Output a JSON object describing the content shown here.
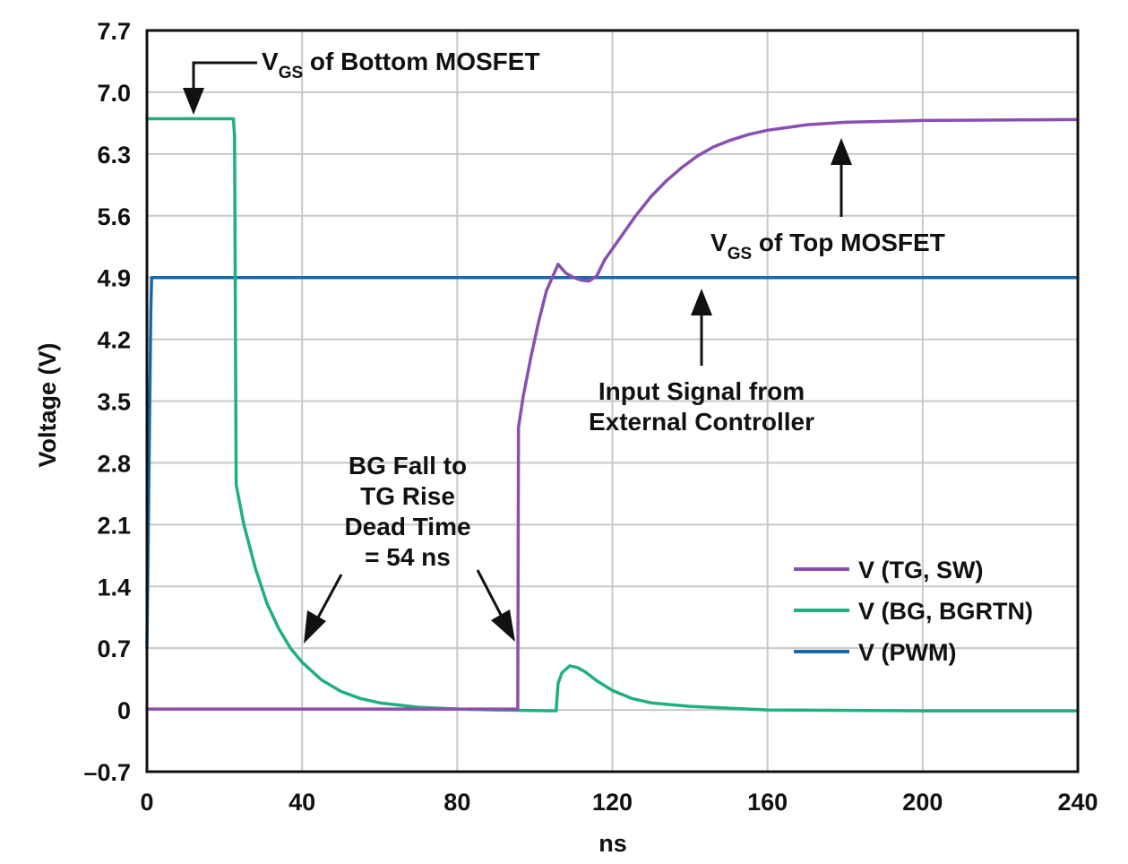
{
  "chart_data": {
    "type": "line",
    "title": "",
    "xlabel": "ns",
    "ylabel": "Voltage (V)",
    "xlim": [
      0,
      240
    ],
    "ylim": [
      -0.7,
      7.7
    ],
    "grid": true,
    "legend_placement": "bottom-right",
    "x_ticks": [
      "0",
      "40",
      "80",
      "120",
      "160",
      "200",
      "240"
    ],
    "x_tick_values": [
      0,
      40,
      80,
      120,
      160,
      200,
      240
    ],
    "y_ticks": [
      "7.7",
      "7.0",
      "6.3",
      "5.6",
      "4.9",
      "4.2",
      "3.5",
      "2.8",
      "2.1",
      "1.4",
      "0.7",
      "0",
      "–0.7"
    ],
    "y_tick_values": [
      7.7,
      7.0,
      6.3,
      5.6,
      4.9,
      4.2,
      3.5,
      2.8,
      2.1,
      1.4,
      0.7,
      0,
      -0.7
    ],
    "series": [
      {
        "name": "V (TG, SW)",
        "color": "#8a4fb0",
        "points": [
          [
            0,
            0.01
          ],
          [
            95.6,
            0.01
          ],
          [
            95.8,
            3.2
          ],
          [
            97,
            3.55
          ],
          [
            99,
            4.0
          ],
          [
            101,
            4.4
          ],
          [
            103,
            4.75
          ],
          [
            105,
            4.95
          ],
          [
            106,
            5.05
          ],
          [
            107,
            5.0
          ],
          [
            108,
            4.95
          ],
          [
            110,
            4.9
          ],
          [
            112,
            4.87
          ],
          [
            114,
            4.86
          ],
          [
            116,
            4.92
          ],
          [
            118,
            5.1
          ],
          [
            122,
            5.35
          ],
          [
            126,
            5.6
          ],
          [
            130,
            5.82
          ],
          [
            134,
            6.0
          ],
          [
            138,
            6.15
          ],
          [
            142,
            6.28
          ],
          [
            146,
            6.38
          ],
          [
            150,
            6.45
          ],
          [
            155,
            6.52
          ],
          [
            160,
            6.57
          ],
          [
            170,
            6.63
          ],
          [
            180,
            6.66
          ],
          [
            200,
            6.68
          ],
          [
            240,
            6.69
          ]
        ]
      },
      {
        "name": "V (BG, BGRTN)",
        "color": "#1fb07e",
        "points": [
          [
            0,
            6.7
          ],
          [
            22.3,
            6.7
          ],
          [
            22.6,
            6.5
          ],
          [
            23,
            2.55
          ],
          [
            25,
            2.1
          ],
          [
            28,
            1.6
          ],
          [
            31,
            1.2
          ],
          [
            34,
            0.92
          ],
          [
            37,
            0.7
          ],
          [
            40,
            0.54
          ],
          [
            45,
            0.34
          ],
          [
            50,
            0.21
          ],
          [
            55,
            0.13
          ],
          [
            60,
            0.08
          ],
          [
            70,
            0.03
          ],
          [
            80,
            0.01
          ],
          [
            90,
            0.0
          ],
          [
            105.5,
            -0.01
          ],
          [
            106,
            0.3
          ],
          [
            107,
            0.42
          ],
          [
            109,
            0.5
          ],
          [
            111,
            0.48
          ],
          [
            113,
            0.43
          ],
          [
            116,
            0.33
          ],
          [
            120,
            0.22
          ],
          [
            125,
            0.13
          ],
          [
            130,
            0.08
          ],
          [
            140,
            0.04
          ],
          [
            160,
            0.0
          ],
          [
            200,
            -0.01
          ],
          [
            240,
            -0.01
          ]
        ]
      },
      {
        "name": "V (PWM)",
        "color": "#1769a8",
        "points": [
          [
            0,
            0.7
          ],
          [
            1,
            4.5
          ],
          [
            1.2,
            4.9
          ],
          [
            240,
            4.9
          ]
        ]
      }
    ],
    "annotations": [
      {
        "text_main": "V",
        "text_sub": "GS",
        "text_rest": " of Bottom MOSFET"
      },
      {
        "text_main": "V",
        "text_sub": "GS",
        "text_rest": " of Top MOSFET"
      },
      {
        "lines": [
          "Input Signal from",
          "External Controller"
        ]
      },
      {
        "lines": [
          "BG Fall to",
          "TG Rise",
          "Dead Time",
          "= 54 ns"
        ]
      }
    ]
  }
}
